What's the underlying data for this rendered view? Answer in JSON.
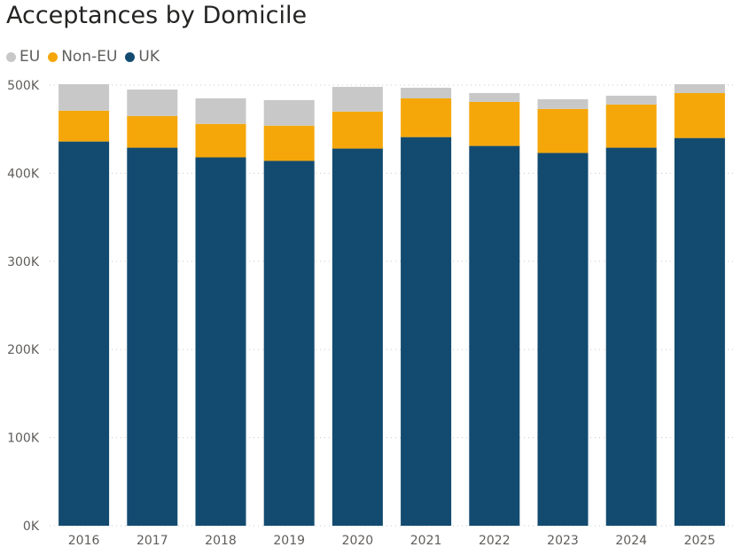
{
  "chart_data": {
    "type": "bar",
    "stacked": true,
    "title": "Acceptances by Domicile",
    "xlabel": "",
    "ylabel": "",
    "categories": [
      "2016",
      "2017",
      "2018",
      "2019",
      "2020",
      "2021",
      "2022",
      "2023",
      "2024",
      "2025"
    ],
    "series": [
      {
        "name": "UK",
        "color": "#134b70",
        "values": [
          436000,
          429000,
          418000,
          414000,
          428000,
          441000,
          431000,
          423000,
          429000,
          440000
        ]
      },
      {
        "name": "Non-EU",
        "color": "#f5a70a",
        "values": [
          35000,
          36000,
          38000,
          40000,
          42000,
          44000,
          50000,
          50000,
          49000,
          51000
        ]
      },
      {
        "name": "EU",
        "color": "#c8c8c8",
        "values": [
          30000,
          30000,
          29000,
          29000,
          28000,
          12000,
          10000,
          11000,
          10000,
          10000
        ]
      }
    ],
    "legend_order": [
      "EU",
      "Non-EU",
      "UK"
    ],
    "legend_position": "top-left",
    "ylim": [
      0,
      500000
    ],
    "yticks": [
      0,
      100000,
      200000,
      300000,
      400000,
      500000
    ],
    "ytick_labels": [
      "0K",
      "100K",
      "200K",
      "300K",
      "400K",
      "500K"
    ],
    "grid": true
  }
}
